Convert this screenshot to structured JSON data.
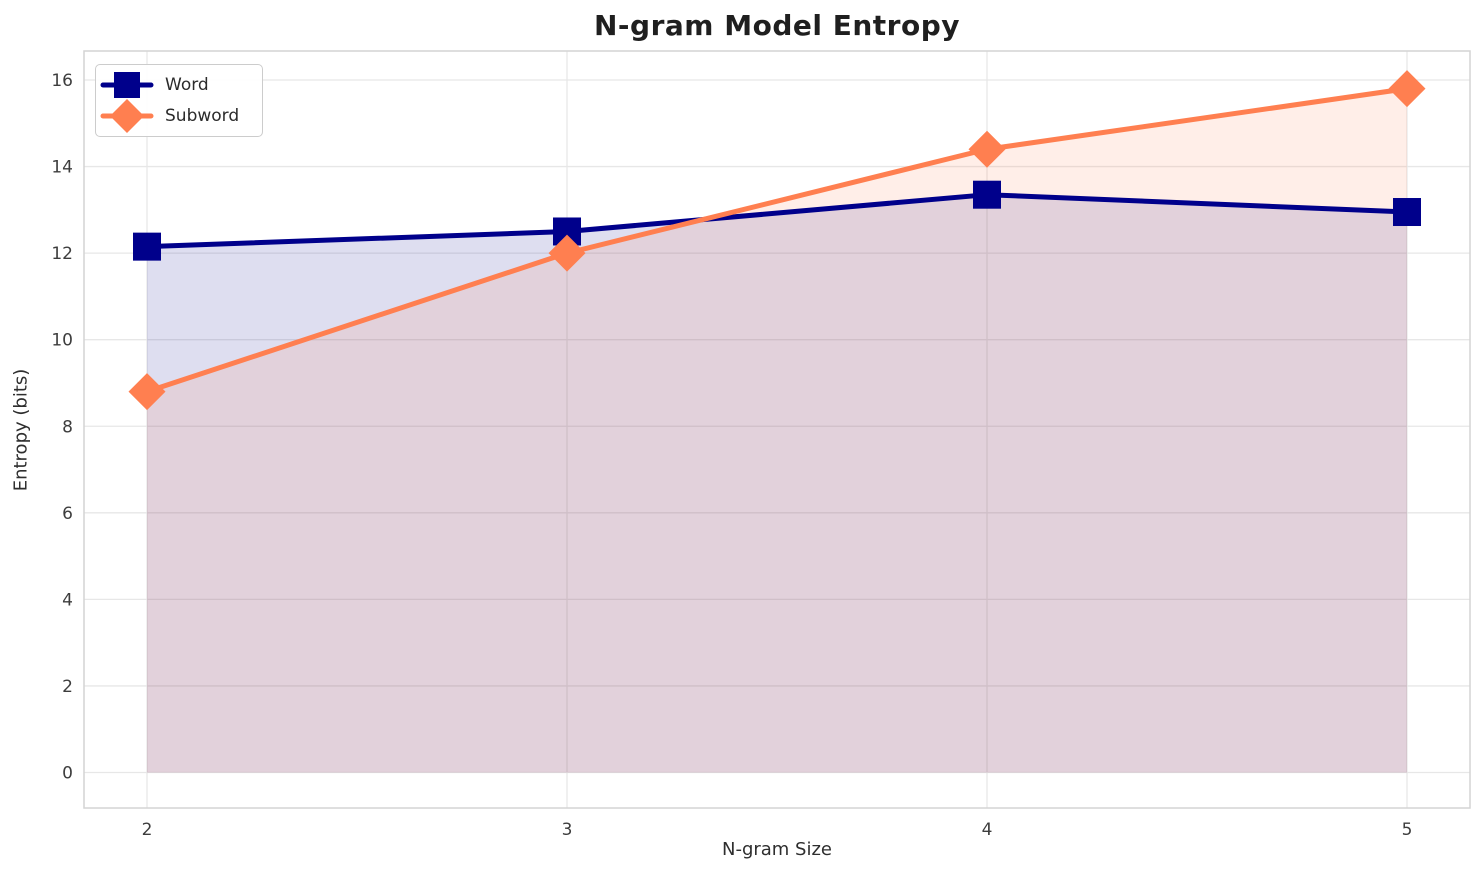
{
  "title": "N-gram Model Entropy",
  "chart_data": {
    "type": "line",
    "title": "N-gram Model Entropy",
    "xlabel": "N-gram Size",
    "ylabel": "Entropy (bits)",
    "x": [
      2,
      3,
      4,
      5
    ],
    "series": [
      {
        "name": "Word",
        "values": [
          12.15,
          12.5,
          13.35,
          12.95
        ],
        "color": "#00008B",
        "marker": "square",
        "fill": true
      },
      {
        "name": "Subword",
        "values": [
          8.8,
          12.0,
          14.4,
          15.8
        ],
        "color": "#FF7F50",
        "marker": "diamond",
        "fill": true
      }
    ],
    "xticks": [
      2,
      3,
      4,
      5
    ],
    "yticks": [
      0,
      2,
      4,
      6,
      8,
      10,
      12,
      14,
      16
    ],
    "xlim": [
      1.85,
      5.15
    ],
    "ylim": [
      -0.82,
      16.67
    ],
    "grid": true,
    "legend_position": "upper left",
    "fill_alpha": 0.13,
    "fill_baseline": 0
  }
}
